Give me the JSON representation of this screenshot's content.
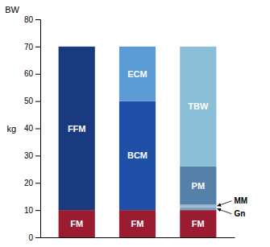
{
  "chart_data": {
    "type": "bar",
    "stacked": true,
    "categories": [
      null,
      null,
      null
    ],
    "series": [
      {
        "name": "FM",
        "color": "#9b1b30",
        "values": [
          10,
          10,
          10
        ]
      },
      {
        "name": "FFM",
        "color": "#1a3a80",
        "values": [
          60,
          null,
          null
        ]
      },
      {
        "name": "BCM",
        "color": "#1e50a8",
        "values": [
          null,
          40,
          null
        ]
      },
      {
        "name": "ECM",
        "color": "#5b9bd5",
        "values": [
          null,
          20,
          null
        ]
      },
      {
        "name": "Gn",
        "color": "#7a9fc0",
        "values": [
          null,
          null,
          1
        ]
      },
      {
        "name": "MM",
        "color": "#9ab8d0",
        "values": [
          null,
          null,
          1
        ]
      },
      {
        "name": "PM",
        "color": "#5580aa",
        "values": [
          null,
          null,
          14
        ]
      },
      {
        "name": "TBW",
        "color": "#8bbfd8",
        "values": [
          null,
          null,
          44
        ]
      }
    ],
    "ylabel": "kg",
    "ylim": [
      0,
      80
    ],
    "yticks": [
      0,
      10,
      20,
      30,
      40,
      50,
      60,
      70,
      80
    ],
    "annotations": [
      {
        "text": "BW"
      },
      {
        "text": "MM",
        "series": "MM"
      },
      {
        "text": "Gn",
        "series": "Gn"
      }
    ],
    "grid": false,
    "tick_labels": "y"
  }
}
